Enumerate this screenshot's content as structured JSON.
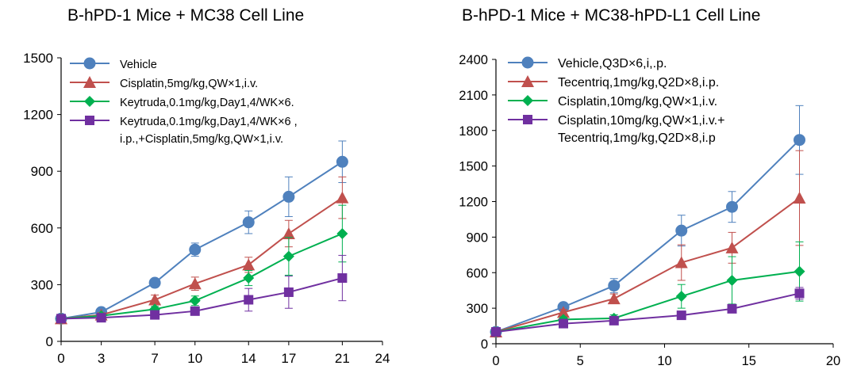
{
  "chart_data": [
    {
      "type": "line",
      "title": "B-hPD-1 Mice + MC38 Cell Line",
      "xlabel": "",
      "ylabel": "",
      "xlim": [
        0,
        24
      ],
      "ylim": [
        0,
        1500
      ],
      "x_ticks": [
        0,
        3,
        7,
        10,
        14,
        17,
        21,
        24
      ],
      "y_ticks": [
        0,
        300,
        600,
        900,
        1200,
        1500
      ],
      "grid": false,
      "legend_position": "top-left",
      "x": [
        0,
        3,
        7,
        10,
        14,
        17,
        21
      ],
      "series": [
        {
          "name": "Vehicle",
          "lines": [
            "Vehicle"
          ],
          "marker": "circle",
          "color": "#4f81bd",
          "values": [
            120,
            155,
            310,
            485,
            630,
            765,
            950
          ],
          "errors": [
            10,
            15,
            20,
            35,
            60,
            105,
            110
          ]
        },
        {
          "name": "Cisplatin,5mg/kg,QW×1,i.v.",
          "lines": [
            "Cisplatin,5mg/kg,QW×1,i.v."
          ],
          "marker": "triangle",
          "color": "#c0504d",
          "values": [
            120,
            140,
            220,
            305,
            405,
            570,
            760
          ],
          "errors": [
            10,
            12,
            25,
            35,
            40,
            70,
            110
          ]
        },
        {
          "name": "Keytruda,0.1mg/kg,Day1,4/WK×6.",
          "lines": [
            "Keytruda,0.1mg/kg,Day1,4/WK×6."
          ],
          "marker": "diamond",
          "color": "#00b050",
          "values": [
            120,
            135,
            170,
            215,
            335,
            450,
            570
          ],
          "errors": [
            10,
            10,
            15,
            25,
            40,
            100,
            150
          ]
        },
        {
          "name": "Keytruda,0.1mg/kg,Day1,4/WK×6 , i.p.,+Cisplatin,5mg/kg,QW×1,i.v.",
          "lines": [
            "Keytruda,0.1mg/kg,Day1,4/WK×6 ,",
            "i.p.,+Cisplatin,5mg/kg,QW×1,i.v."
          ],
          "marker": "square",
          "color": "#7030a0",
          "values": [
            120,
            125,
            140,
            160,
            220,
            260,
            335
          ],
          "errors": [
            10,
            10,
            12,
            20,
            60,
            85,
            120
          ]
        }
      ]
    },
    {
      "type": "line",
      "title": "B-hPD-1 Mice + MC38-hPD-L1 Cell Line",
      "xlabel": "",
      "ylabel": "",
      "xlim": [
        0,
        20
      ],
      "ylim": [
        0,
        2400
      ],
      "x_ticks": [
        0,
        5,
        10,
        15,
        20
      ],
      "y_ticks": [
        0,
        300,
        600,
        900,
        1200,
        1500,
        1800,
        2100,
        2400
      ],
      "grid": false,
      "legend_position": "top-left",
      "x": [
        0,
        4,
        7,
        11,
        14,
        18
      ],
      "series": [
        {
          "name": "Vehicle,Q3D×6,i,.p.",
          "lines": [
            "Vehicle,Q3D×6,i,.p."
          ],
          "marker": "circle",
          "color": "#4f81bd",
          "values": [
            100,
            310,
            490,
            955,
            1155,
            1720
          ],
          "errors": [
            10,
            30,
            60,
            130,
            130,
            290
          ]
        },
        {
          "name": "Tecentriq,1mg/kg,Q2D×8,i.p.",
          "lines": [
            "Tecentriq,1mg/kg,Q2D×8,i.p."
          ],
          "marker": "triangle",
          "color": "#c0504d",
          "values": [
            100,
            265,
            380,
            685,
            810,
            1230
          ],
          "errors": [
            10,
            25,
            40,
            150,
            130,
            400
          ]
        },
        {
          "name": "Cisplatin,10mg/kg,QW×1,i.v.",
          "lines": [
            "Cisplatin,10mg/kg,QW×1,i.v."
          ],
          "marker": "diamond",
          "color": "#00b050",
          "values": [
            100,
            205,
            215,
            400,
            535,
            610
          ],
          "errors": [
            10,
            20,
            30,
            100,
            200,
            250
          ]
        },
        {
          "name": "Cisplatin,10mg/kg,QW×1,i.v.+ Tecentriq,1mg/kg,Q2D×8,i.p",
          "lines": [
            "Cisplatin,10mg/kg,QW×1,i.v.+",
            "Tecentriq,1mg/kg,Q2D×8,i.p"
          ],
          "marker": "square",
          "color": "#7030a0",
          "values": [
            100,
            170,
            195,
            240,
            295,
            425
          ],
          "errors": [
            10,
            15,
            20,
            25,
            30,
            50
          ]
        }
      ]
    }
  ]
}
